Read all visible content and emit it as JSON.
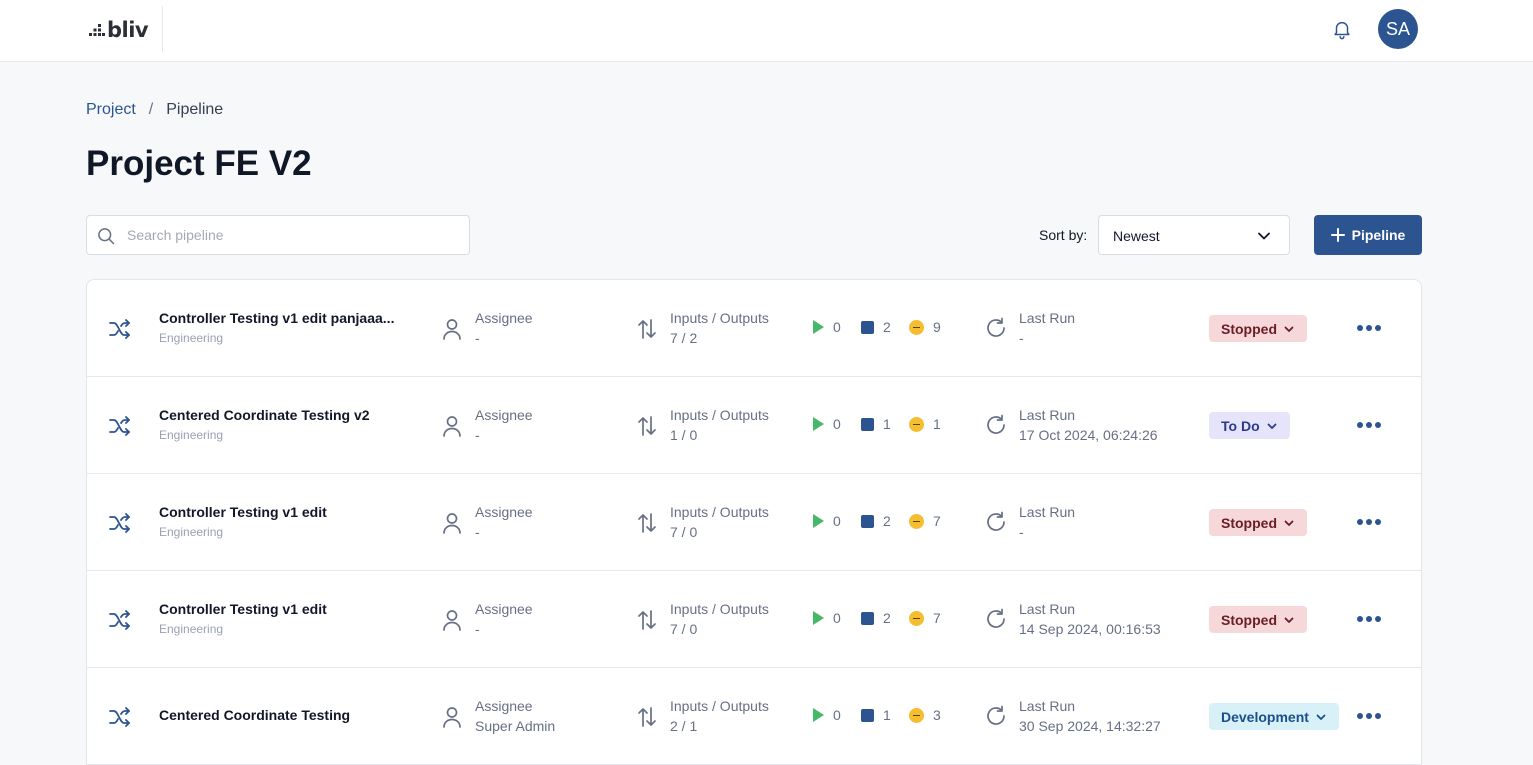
{
  "header": {
    "logo_text": "bliv",
    "avatar_initials": "SA"
  },
  "breadcrumb": {
    "root": "Project",
    "separator": "/",
    "current": "Pipeline"
  },
  "page": {
    "title": "Project FE V2"
  },
  "search": {
    "placeholder": "Search pipeline",
    "value": ""
  },
  "sort": {
    "label": "Sort by:",
    "selected": "Newest"
  },
  "add_button": {
    "label": "Pipeline"
  },
  "colors": {
    "brand": "#2c5491",
    "running": "#46b86a",
    "pending": "#f4be30"
  },
  "pipelines": [
    {
      "name": "Controller Testing v1 edit panjaaa...",
      "category": "Engineering",
      "assignee_label": "Assignee",
      "assignee": "-",
      "io_label": "Inputs / Outputs",
      "io": "7 / 2",
      "running": "0",
      "stopped": "2",
      "pending": "9",
      "last_run_label": "Last Run",
      "last_run": "-",
      "status": "Stopped",
      "status_bg": "#f6d8db",
      "status_fg": "#6b1d24"
    },
    {
      "name": "Centered Coordinate Testing v2",
      "category": "Engineering",
      "assignee_label": "Assignee",
      "assignee": "-",
      "io_label": "Inputs / Outputs",
      "io": "1 / 0",
      "running": "0",
      "stopped": "1",
      "pending": "1",
      "last_run_label": "Last Run",
      "last_run": "17 Oct 2024, 06:24:26",
      "status": "To Do",
      "status_bg": "#e5e4fb",
      "status_fg": "#2d3a8c"
    },
    {
      "name": "Controller Testing v1 edit",
      "category": "Engineering",
      "assignee_label": "Assignee",
      "assignee": "-",
      "io_label": "Inputs / Outputs",
      "io": "7 / 0",
      "running": "0",
      "stopped": "2",
      "pending": "7",
      "last_run_label": "Last Run",
      "last_run": "-",
      "status": "Stopped",
      "status_bg": "#f6d8db",
      "status_fg": "#6b1d24"
    },
    {
      "name": "Controller Testing v1 edit",
      "category": "Engineering",
      "assignee_label": "Assignee",
      "assignee": "-",
      "io_label": "Inputs / Outputs",
      "io": "7 / 0",
      "running": "0",
      "stopped": "2",
      "pending": "7",
      "last_run_label": "Last Run",
      "last_run": "14 Sep 2024, 00:16:53",
      "status": "Stopped",
      "status_bg": "#f6d8db",
      "status_fg": "#6b1d24"
    },
    {
      "name": "Centered Coordinate Testing",
      "category": "",
      "assignee_label": "Assignee",
      "assignee": "Super Admin",
      "io_label": "Inputs / Outputs",
      "io": "2 / 1",
      "running": "0",
      "stopped": "1",
      "pending": "3",
      "last_run_label": "Last Run",
      "last_run": "30 Sep 2024, 14:32:27",
      "status": "Development",
      "status_bg": "#d8f1f8",
      "status_fg": "#1a4f8a"
    }
  ]
}
